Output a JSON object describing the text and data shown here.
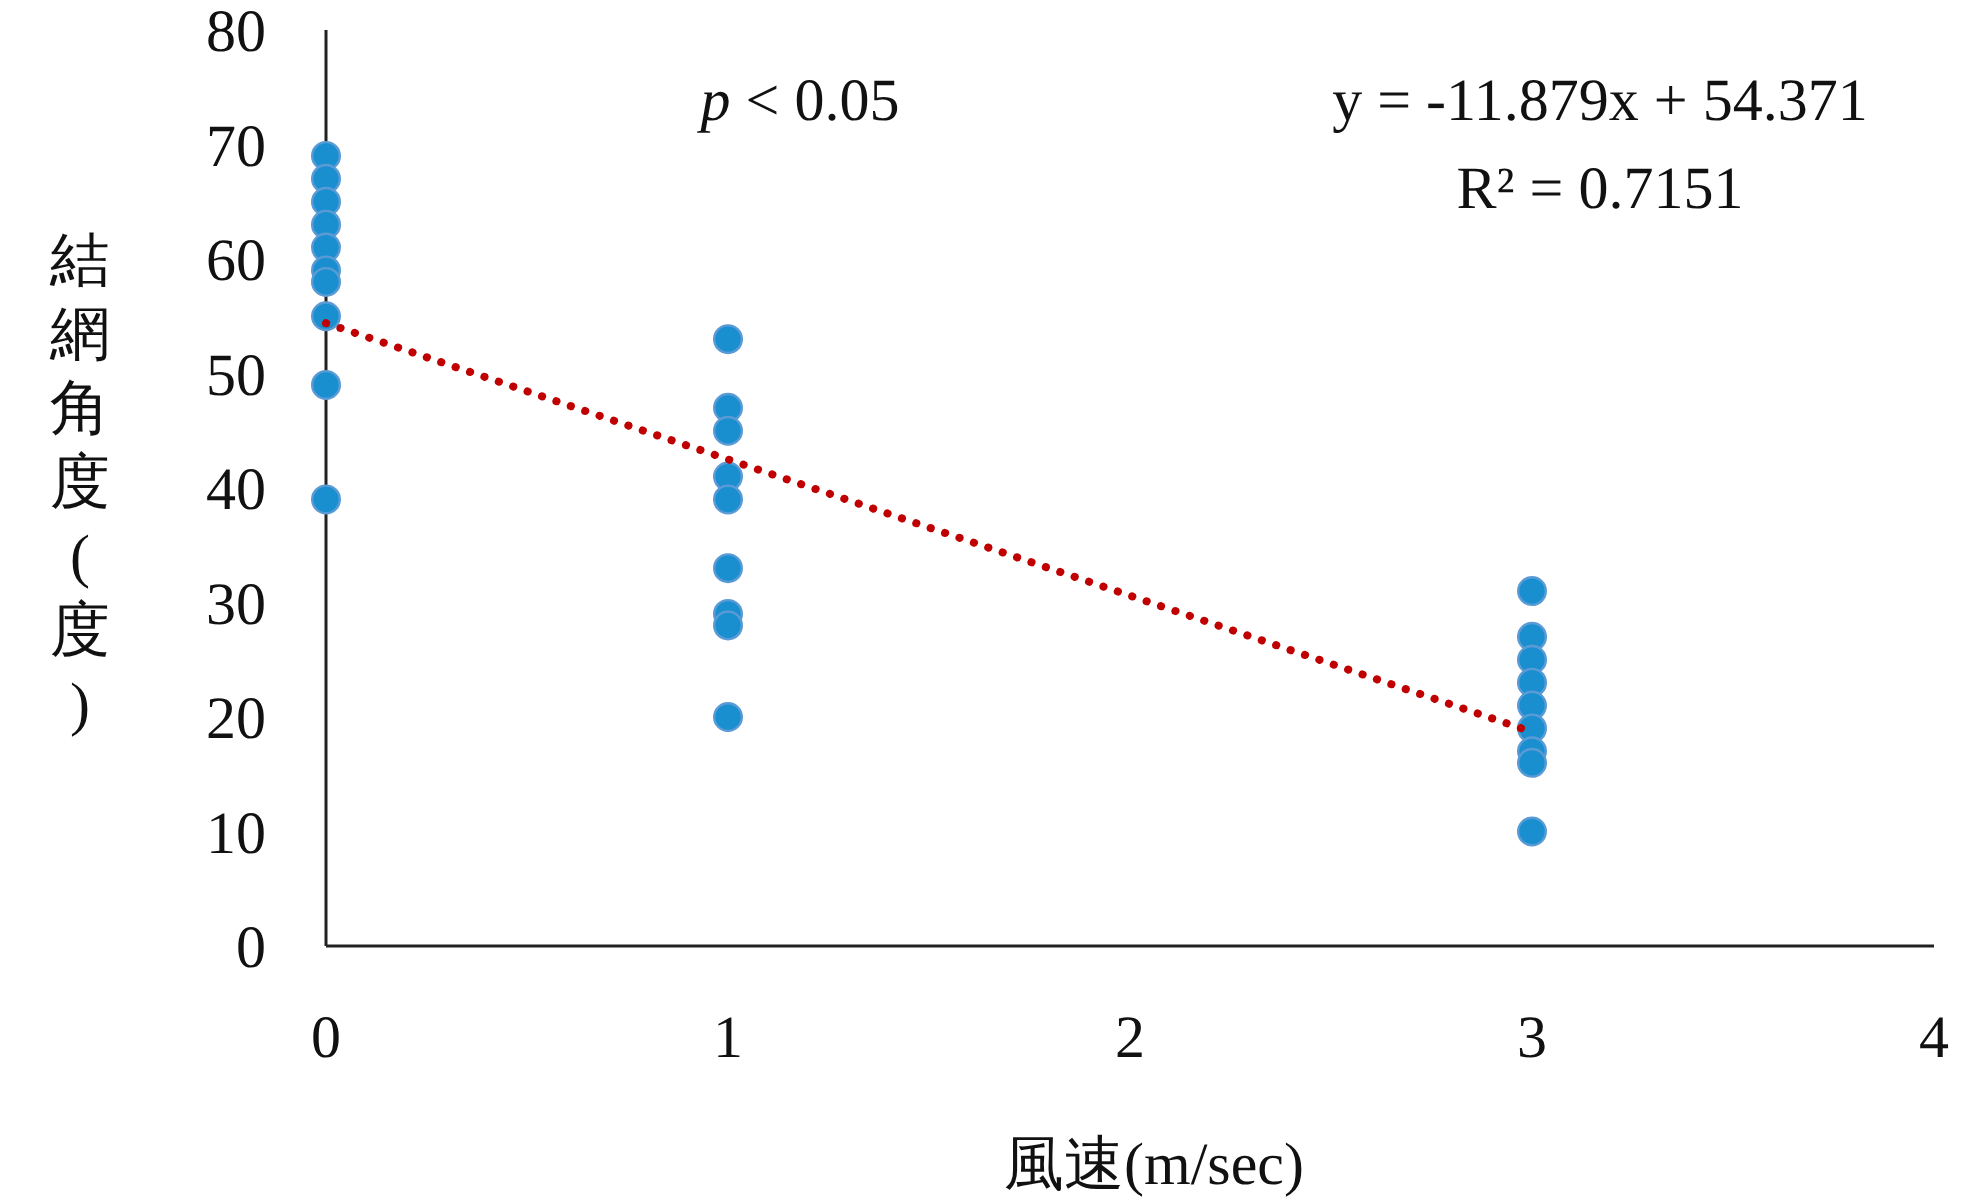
{
  "chart_data": {
    "type": "scatter",
    "xlabel": "風速(m/sec)",
    "ylabel": "結網角度(度)",
    "xlim": [
      0,
      4
    ],
    "xticks": [
      0,
      1,
      2,
      3,
      4
    ],
    "ylim": [
      0,
      80
    ],
    "yticks": [
      0,
      10,
      20,
      30,
      40,
      50,
      60,
      70,
      80
    ],
    "grid": false,
    "marker": "circle",
    "annotations": [
      "p < 0.05",
      "y = -11.879x + 54.371",
      "R² = 0.7151"
    ],
    "series": [
      {
        "color": "#1a8fd0",
        "x": [
          0,
          0,
          0,
          0,
          0,
          0,
          0,
          0,
          0,
          0,
          1,
          1,
          1,
          1,
          1,
          1,
          1,
          1,
          1,
          3,
          3,
          3,
          3,
          3,
          3,
          3,
          3,
          3
        ],
        "values": [
          69,
          67,
          65,
          63,
          61,
          59,
          58,
          55,
          49,
          39,
          53,
          47,
          45,
          41,
          39,
          33,
          29,
          28,
          20,
          31,
          27,
          25,
          23,
          21,
          19,
          17,
          16,
          10
        ]
      },
      {
        "type": "line",
        "color": "#c00000",
        "line_style": "dotted",
        "marker": "none",
        "x": [
          0,
          3
        ],
        "values": [
          54.4,
          18.7
        ]
      }
    ]
  }
}
